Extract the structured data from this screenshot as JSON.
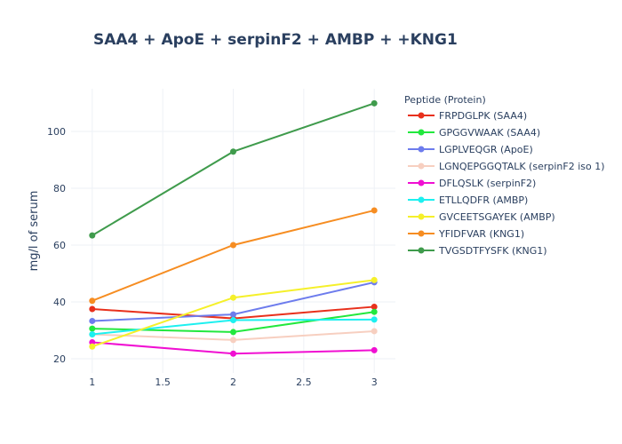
{
  "chart_data": {
    "type": "line",
    "title": "SAA4 + ApoE + serpinF2 + AMBP + +KNG1",
    "xlabel": "",
    "ylabel": "mg/l of serum",
    "x": [
      1,
      2,
      3
    ],
    "xlim": [
      0.85,
      3.15
    ],
    "ylim": [
      15,
      115
    ],
    "xticks": [
      "1",
      "1.5",
      "2",
      "2.5",
      "3"
    ],
    "yticks": [
      "20",
      "40",
      "60",
      "80",
      "100"
    ],
    "grid": true,
    "legend_title": "Peptide  (Protein)",
    "legend_position": "right",
    "series": [
      {
        "name": "FRPDGLPK (SAA4)",
        "color": "#e8301c",
        "values": [
          37.5,
          34.2,
          38.3
        ]
      },
      {
        "name": "GPGGVWAAK (SAA4)",
        "color": "#22e83e",
        "values": [
          30.6,
          29.4,
          36.5
        ]
      },
      {
        "name": "LGPLVEQGR (ApoE)",
        "color": "#6d7ced",
        "values": [
          33.3,
          35.6,
          46.9
        ]
      },
      {
        "name": "LGNQEPGGQTALK (serpinF2 iso 1)",
        "color": "#f7cfc0",
        "values": [
          28.6,
          26.6,
          29.7
        ]
      },
      {
        "name": "DFLQSLK (serpinF2)",
        "color": "#f00fd2",
        "values": [
          25.8,
          21.8,
          23.0
        ]
      },
      {
        "name": "ETLLQDFR (AMBP)",
        "color": "#1df0f0",
        "values": [
          28.6,
          33.6,
          33.8
        ]
      },
      {
        "name": "GVCEETSGAYEK (AMBP)",
        "color": "#f5f02a",
        "values": [
          24.3,
          41.5,
          47.7
        ]
      },
      {
        "name": "YFIDFVAR (KNG1)",
        "color": "#f68d22",
        "values": [
          40.4,
          60.0,
          72.2
        ]
      },
      {
        "name": "TVGSDTFYSFK (KNG1)",
        "color": "#3f9b4c",
        "values": [
          63.4,
          92.9,
          109.9
        ]
      }
    ]
  }
}
